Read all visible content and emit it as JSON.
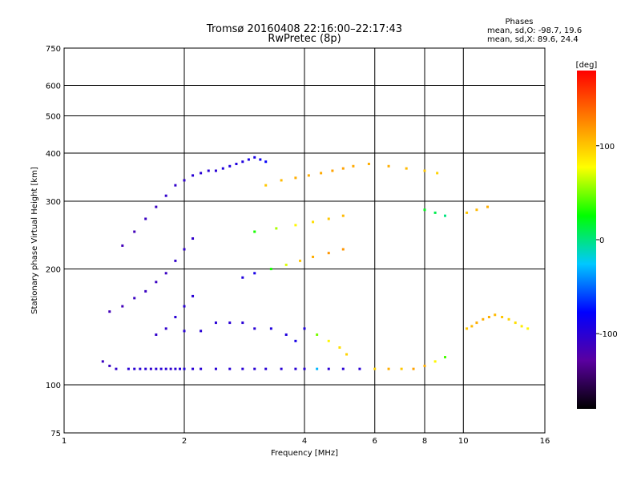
{
  "chart_data": {
    "type": "scatter",
    "title": "Tromsø 20160408 22:16:00–22:17:43",
    "subtitle": "RwPretec (8p)",
    "xlabel": "Frequency [MHz]",
    "ylabel": "Stationary phase Virtual Height [km]",
    "x_scale": "log",
    "y_scale": "log",
    "xlim": [
      1,
      16
    ],
    "ylim": [
      75,
      750
    ],
    "x_ticks": [
      1,
      2,
      4,
      6,
      8,
      10,
      16
    ],
    "y_ticks": [
      75,
      100,
      200,
      300,
      400,
      500,
      600,
      750
    ],
    "grid": true,
    "phases_note": {
      "heading": "Phases",
      "line1": "mean, sd,O: -98.7, 19.6",
      "line2": "mean, sd,X:  89.6, 24.4"
    },
    "colorbar": {
      "label": "[deg]",
      "range": [
        -180,
        180
      ],
      "ticks": [
        100,
        0,
        -100
      ],
      "colors": [
        "#000000",
        "#5a00a0",
        "#0000ff",
        "#00c8ff",
        "#00ff00",
        "#ffff00",
        "#ff8000",
        "#ff0000"
      ]
    },
    "series": [
      {
        "x": [
          1.25,
          1.3,
          1.35,
          1.45,
          1.5,
          1.55,
          1.6,
          1.65,
          1.7,
          1.75,
          1.8,
          1.85,
          1.9,
          1.95,
          2.0,
          2.1,
          2.2,
          2.4,
          2.6,
          2.8,
          3.0,
          3.2,
          3.5,
          3.8,
          4.0,
          4.3,
          4.6,
          5.0,
          5.5,
          6.0,
          6.5,
          7.0,
          7.5,
          8.0,
          8.5,
          9.0
        ],
        "y": [
          115,
          112,
          110,
          110,
          110,
          110,
          110,
          110,
          110,
          110,
          110,
          110,
          110,
          110,
          110,
          110,
          110,
          110,
          110,
          110,
          110,
          110,
          110,
          110,
          110,
          110,
          110,
          110,
          110,
          110,
          110,
          110,
          110,
          112,
          115,
          118
        ],
        "phase": [
          -110,
          -110,
          -105,
          -100,
          -100,
          -100,
          -100,
          -105,
          -100,
          -100,
          -100,
          -105,
          -100,
          -100,
          -95,
          -100,
          -100,
          -100,
          -100,
          -100,
          -100,
          -100,
          -100,
          -100,
          -100,
          -30,
          -100,
          -100,
          -100,
          95,
          110,
          100,
          115,
          110,
          80,
          40
        ]
      },
      {
        "x": [
          1.3,
          1.4,
          1.5,
          1.6,
          1.7,
          1.8,
          1.9,
          2.0,
          2.1
        ],
        "y": [
          155,
          160,
          168,
          175,
          185,
          195,
          210,
          225,
          240
        ],
        "phase": [
          -115,
          -115,
          -110,
          -110,
          -110,
          -110,
          -105,
          -105,
          -105
        ]
      },
      {
        "x": [
          1.4,
          1.5,
          1.6,
          1.7,
          1.8,
          1.9,
          2.0,
          2.1,
          2.2,
          2.3,
          2.4,
          2.5,
          2.6,
          2.7,
          2.8,
          2.9,
          3.0,
          3.1,
          3.2
        ],
        "y": [
          230,
          250,
          270,
          290,
          310,
          330,
          340,
          350,
          355,
          360,
          360,
          365,
          370,
          375,
          380,
          385,
          390,
          385,
          380
        ],
        "phase": [
          -115,
          -115,
          -110,
          -110,
          -105,
          -105,
          -105,
          -100,
          -100,
          -100,
          -100,
          -95,
          -95,
          -95,
          -95,
          -90,
          -90,
          -85,
          -80
        ]
      },
      {
        "x": [
          1.7,
          1.8,
          1.9,
          2.0,
          2.1
        ],
        "y": [
          135,
          140,
          150,
          160,
          170
        ],
        "phase": [
          -105,
          -105,
          -100,
          -100,
          -100
        ]
      },
      {
        "x": [
          2.0,
          2.2,
          2.4,
          2.6,
          2.8,
          3.0,
          3.3,
          3.6,
          3.8,
          4.0,
          4.3,
          4.6,
          4.9,
          5.1
        ],
        "y": [
          138,
          138,
          145,
          145,
          145,
          140,
          140,
          135,
          130,
          140,
          135,
          130,
          125,
          120
        ],
        "phase": [
          -100,
          -100,
          -100,
          -100,
          -100,
          -100,
          -95,
          -95,
          -90,
          -95,
          50,
          80,
          90,
          95
        ]
      },
      {
        "x": [
          2.8,
          3.0,
          3.3,
          3.6,
          3.9,
          4.2,
          4.6,
          5.0
        ],
        "y": [
          190,
          195,
          200,
          205,
          210,
          215,
          220,
          225
        ],
        "phase": [
          -95,
          -90,
          30,
          70,
          100,
          110,
          120,
          120
        ]
      },
      {
        "x": [
          3.2,
          3.5,
          3.8,
          4.1,
          4.4,
          4.7,
          5.0,
          5.3,
          5.8,
          6.5,
          7.2,
          8.0,
          8.6
        ],
        "y": [
          330,
          340,
          345,
          350,
          355,
          360,
          365,
          370,
          375,
          370,
          365,
          360,
          355
        ],
        "phase": [
          100,
          105,
          110,
          110,
          112,
          115,
          115,
          112,
          110,
          110,
          105,
          100,
          95
        ]
      },
      {
        "x": [
          3.0,
          3.4,
          3.8,
          4.2,
          4.6,
          5.0
        ],
        "y": [
          250,
          255,
          260,
          265,
          270,
          275
        ],
        "phase": [
          30,
          60,
          80,
          90,
          100,
          105
        ]
      },
      {
        "x": [
          10.2,
          10.5,
          10.8,
          11.2,
          11.6,
          12.0,
          12.5,
          13.0,
          13.5,
          14.0,
          14.5
        ],
        "y": [
          140,
          142,
          145,
          148,
          150,
          152,
          150,
          148,
          145,
          142,
          140
        ],
        "phase": [
          100,
          105,
          110,
          110,
          110,
          105,
          100,
          95,
          90,
          85,
          80
        ]
      },
      {
        "x": [
          8.0,
          8.5,
          9.0,
          10.2,
          10.8,
          11.5
        ],
        "y": [
          285,
          280,
          275,
          280,
          285,
          290
        ],
        "phase": [
          20,
          10,
          0,
          100,
          105,
          110
        ]
      }
    ]
  }
}
